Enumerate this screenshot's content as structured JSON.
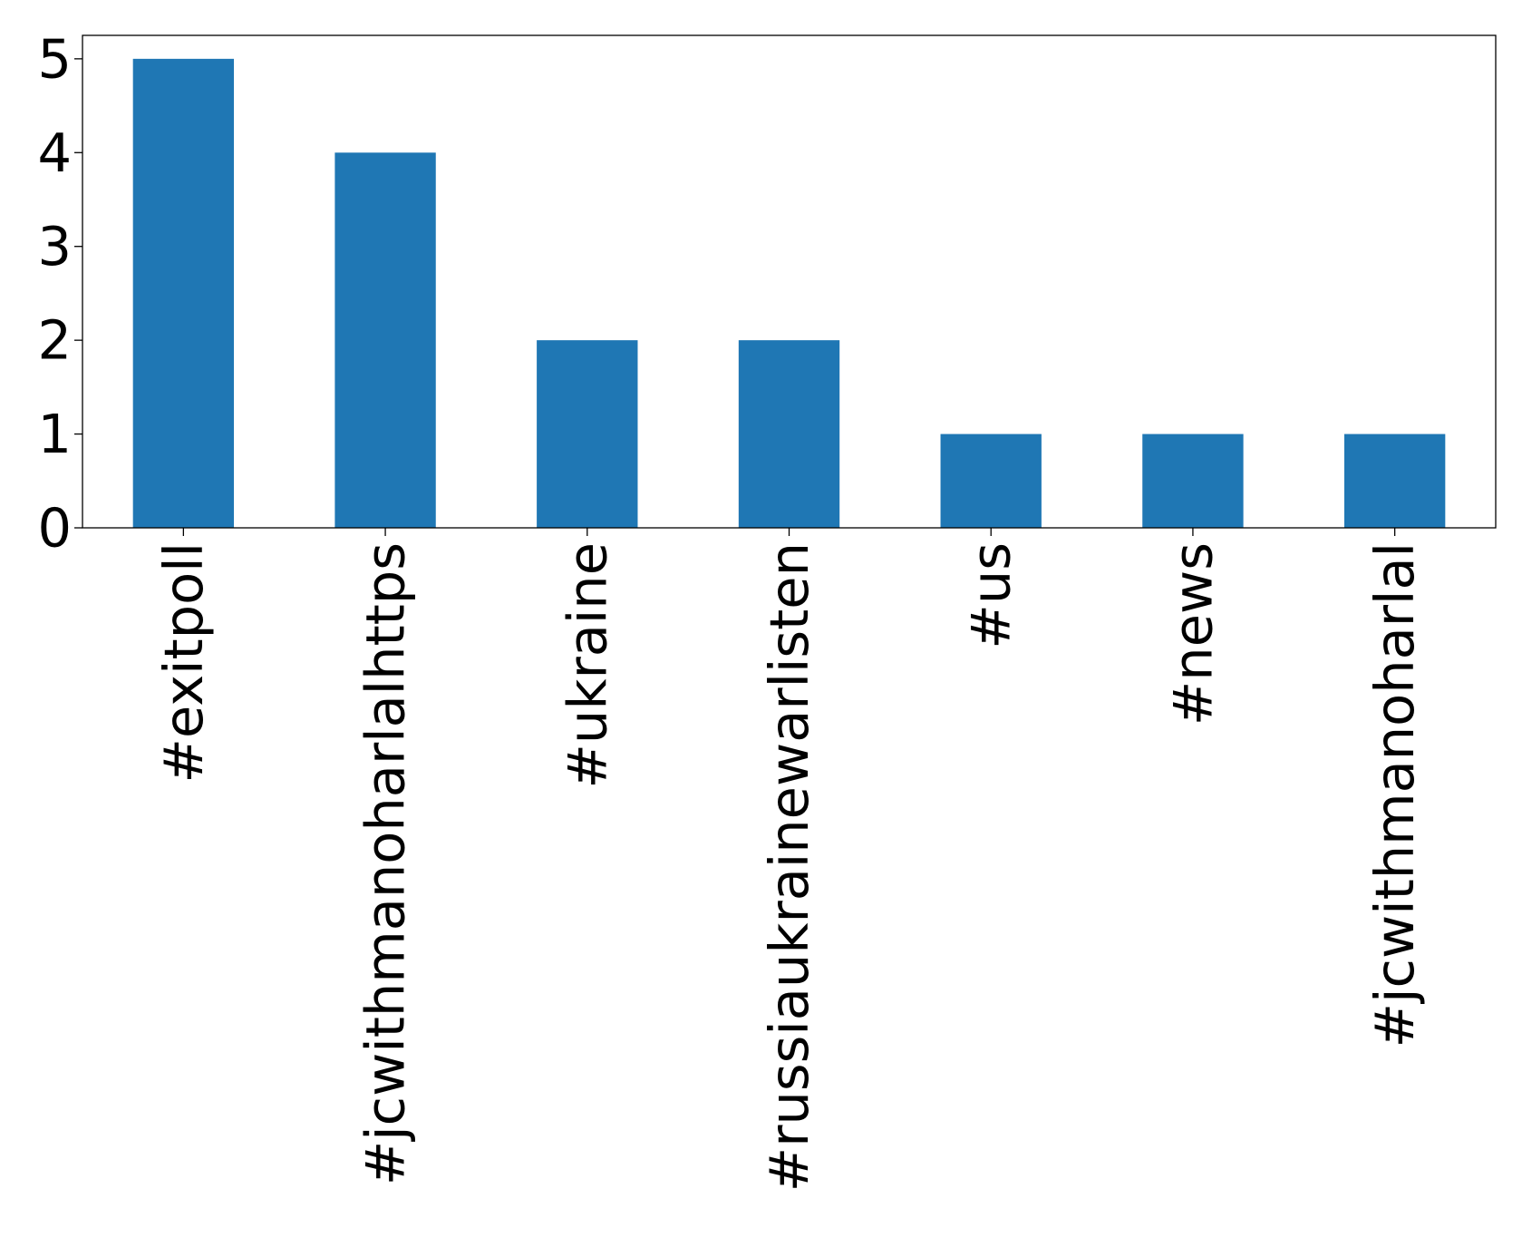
{
  "chart_data": {
    "type": "bar",
    "title": "",
    "xlabel": "",
    "ylabel": "",
    "categories": [
      "#exitpoll",
      "#jcwithmanoharlalhttps",
      "#ukraine",
      "#russiaukrainewarlisten",
      "#us",
      "#news",
      "#jcwithmanoharlal"
    ],
    "values": [
      5,
      4,
      2,
      2,
      1,
      1,
      1
    ],
    "ylim": [
      0,
      5.25
    ],
    "yticks": [
      "0",
      "1",
      "2",
      "3",
      "4",
      "5"
    ],
    "grid": false,
    "legend": "none",
    "bar_color": "#1f77b4"
  }
}
